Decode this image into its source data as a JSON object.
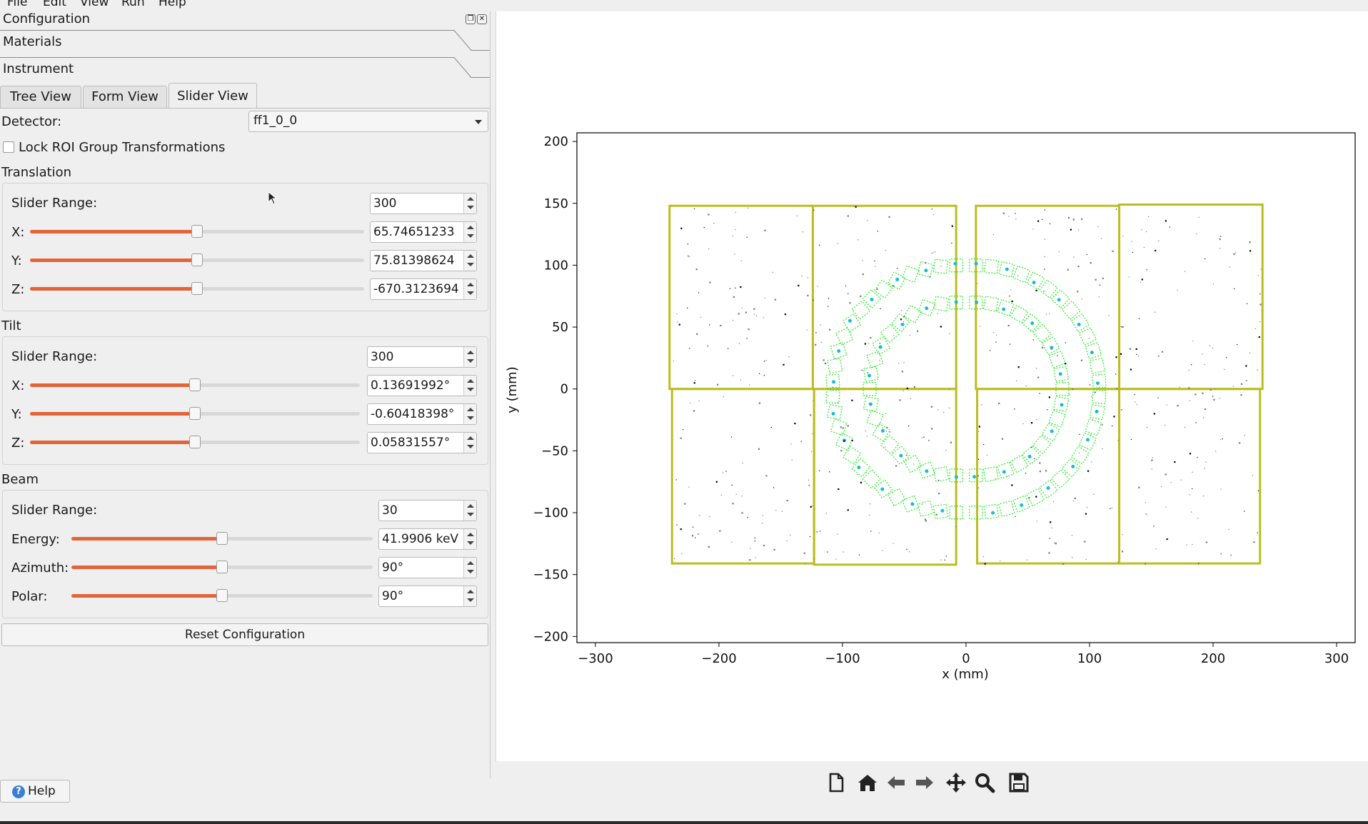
{
  "menu": [
    "File",
    "Edit",
    "View",
    "Run",
    "Help"
  ],
  "panel": {
    "title": "Configuration",
    "sections": [
      "Materials",
      "Instrument"
    ],
    "tabs": [
      "Tree View",
      "Form View",
      "Slider View"
    ],
    "active_tab": "Slider View",
    "detector_label": "Detector:",
    "detector_value": "ff1_0_0",
    "lock_label": "Lock ROI Group Transformations",
    "lock_checked": false,
    "translation": {
      "title": "Translation",
      "range_label": "Slider Range:",
      "range": "300",
      "x_label": "X:",
      "x": "65.74651233",
      "x_pos": 0.5,
      "y_label": "Y:",
      "y": "75.81398624",
      "y_pos": 0.5,
      "z_label": "Z:",
      "z": "-670.3123694",
      "z_pos": 0.5
    },
    "tilt": {
      "title": "Tilt",
      "range_label": "Slider Range:",
      "range": "300",
      "x_label": "X:",
      "x": "0.13691992°",
      "x_pos": 0.5,
      "y_label": "Y:",
      "y": "-0.60418398°",
      "y_pos": 0.5,
      "z_label": "Z:",
      "z": "0.05831557°",
      "z_pos": 0.5
    },
    "beam": {
      "title": "Beam",
      "range_label": "Slider Range:",
      "range": "30",
      "energy_label": "Energy:",
      "energy": "41.9906 keV",
      "energy_pos": 0.5,
      "azimuth_label": "Azimuth:",
      "azimuth": "90°",
      "azimuth_pos": 0.5,
      "polar_label": "Polar:",
      "polar": "90°",
      "polar_pos": 0.5
    },
    "reset_label": "Reset Configuration",
    "help_label": "Help"
  },
  "plot": {
    "xlabel": "x (mm)",
    "ylabel": "y (mm)",
    "xticks": [
      "−300",
      "−200",
      "−100",
      "0",
      "100",
      "200",
      "300"
    ],
    "yticks": [
      "200",
      "150",
      "100",
      "50",
      "0",
      "−50",
      "−100",
      "−150",
      "−200"
    ],
    "frame_color": "#bcbd22",
    "ring_color": "#22ee22"
  },
  "chart_data": {
    "type": "scatter",
    "title": "",
    "xlabel": "x (mm)",
    "ylabel": "y (mm)",
    "xlim": [
      -315,
      315
    ],
    "ylim": [
      -205,
      207
    ],
    "xticks": [
      -300,
      -200,
      -100,
      0,
      100,
      200,
      300
    ],
    "yticks": [
      -200,
      -150,
      -100,
      -50,
      0,
      50,
      100,
      150,
      200
    ],
    "detector_panels": [
      {
        "x0": -240,
        "x1": -124,
        "y0": 0,
        "y1": 148
      },
      {
        "x0": -124,
        "x1": -8,
        "y0": 0,
        "y1": 148
      },
      {
        "x0": 8,
        "x1": 124,
        "y0": 0,
        "y1": 148
      },
      {
        "x0": 124,
        "x1": 240,
        "y0": 0,
        "y1": 149
      },
      {
        "x0": -238,
        "x1": -123,
        "y0": -141,
        "y1": 0
      },
      {
        "x0": -123,
        "x1": -8,
        "y0": -142,
        "y1": 0
      },
      {
        "x0": 9,
        "x1": 124,
        "y0": -141,
        "y1": 0
      },
      {
        "x0": 124,
        "x1": 238,
        "y0": -141,
        "y1": 0
      }
    ],
    "rings": [
      {
        "cx": -8,
        "cy": 0,
        "r": 70,
        "side": "left"
      },
      {
        "cx": -8,
        "cy": 0,
        "r": 100,
        "side": "left"
      },
      {
        "cx": 8,
        "cy": 0,
        "r": 70,
        "side": "right"
      },
      {
        "cx": 8,
        "cy": 0,
        "r": 100,
        "side": "right"
      }
    ]
  },
  "toolbar": [
    "new-icon",
    "home-icon",
    "back-icon",
    "forward-icon",
    "pan-icon",
    "zoom-icon",
    "save-icon"
  ]
}
